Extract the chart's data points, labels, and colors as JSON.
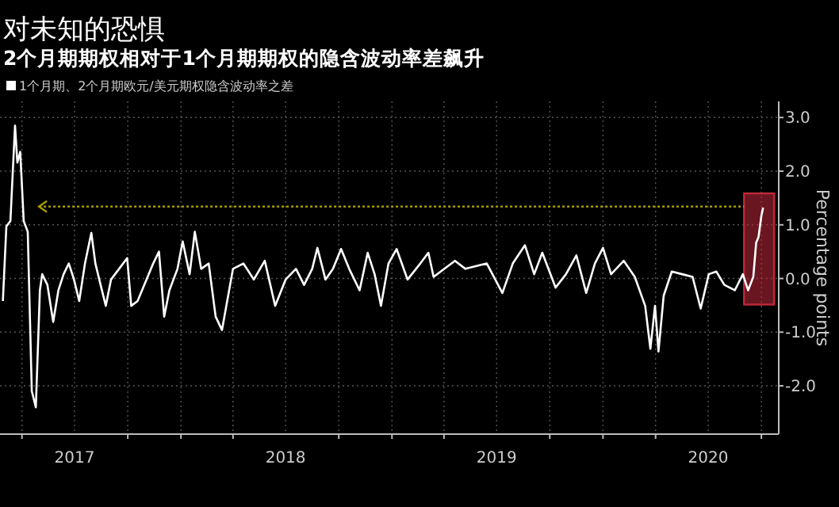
{
  "chart_data": {
    "type": "line",
    "title": "对未知的恐惧",
    "subtitle": "2个月期期权相对于1个月期期权的隐含波动率差飙升",
    "ylabel": "Percentage points",
    "legend": "top left",
    "grid": true,
    "line_style": "solid",
    "marker": "none",
    "xlim": [
      "2017-02-22",
      "2020-10-31"
    ],
    "ylim": [
      -2.9,
      3.3
    ],
    "yticks": [
      {
        "value": 3,
        "label": "3.0"
      },
      {
        "value": 2,
        "label": "2.0"
      },
      {
        "value": 1,
        "label": "1.0"
      },
      {
        "value": 0,
        "label": "0.0"
      },
      {
        "value": -1,
        "label": "-1.0"
      },
      {
        "value": -2,
        "label": "-2.0"
      }
    ],
    "xticks": [
      {
        "value": "2017-04-01",
        "label": null
      },
      {
        "value": "2017-07-01",
        "label": "2017"
      },
      {
        "value": "2017-10-01",
        "label": null
      },
      {
        "value": "2018-01-01",
        "label": null
      },
      {
        "value": "2018-04-01",
        "label": null
      },
      {
        "value": "2018-07-01",
        "label": "2018"
      },
      {
        "value": "2018-10-01",
        "label": null
      },
      {
        "value": "2019-01-01",
        "label": null
      },
      {
        "value": "2019-04-01",
        "label": null
      },
      {
        "value": "2019-07-01",
        "label": "2019"
      },
      {
        "value": "2019-10-01",
        "label": null
      },
      {
        "value": "2020-01-01",
        "label": null
      },
      {
        "value": "2020-04-01",
        "label": null
      },
      {
        "value": "2020-07-01",
        "label": "2020"
      },
      {
        "value": "2020-10-01",
        "label": null
      }
    ],
    "ref_lines": [
      {
        "axis": "y",
        "value": 1.34,
        "color": "#a89a00",
        "line_style": "dotted"
      }
    ],
    "bands": [
      {
        "axis": "x",
        "from": "2020-09-01",
        "to": "2020-10-23",
        "color": "#c0283a"
      }
    ],
    "series": [
      {
        "name": "1个月期、2个月期欧元/美元期权隐含波动率之差",
        "color": "#ffffff",
        "x": [
          "2017-02-27",
          "2017-03-05",
          "2017-03-12",
          "2017-03-20",
          "2017-03-24",
          "2017-03-29",
          "2017-04-04",
          "2017-04-11",
          "2017-04-18",
          "2017-04-25",
          "2017-05-02",
          "2017-05-06",
          "2017-05-15",
          "2017-05-25",
          "2017-06-03",
          "2017-06-12",
          "2017-06-21",
          "2017-06-30",
          "2017-07-09",
          "2017-07-19",
          "2017-07-30",
          "2017-08-06",
          "2017-08-15",
          "2017-08-24",
          "2017-09-02",
          "2017-09-16",
          "2017-09-30",
          "2017-10-07",
          "2017-10-18",
          "2017-11-14",
          "2017-11-24",
          "2017-12-03",
          "2017-12-12",
          "2017-12-26",
          "2018-01-04",
          "2018-01-16",
          "2018-01-25",
          "2018-02-05",
          "2018-02-18",
          "2018-03-02",
          "2018-03-13",
          "2018-04-01",
          "2018-04-19",
          "2018-05-07",
          "2018-05-26",
          "2018-06-13",
          "2018-07-01",
          "2018-07-19",
          "2018-08-02",
          "2018-08-16",
          "2018-08-25",
          "2018-09-08",
          "2018-09-21",
          "2018-10-05",
          "2018-10-19",
          "2018-11-06",
          "2018-11-20",
          "2018-12-02",
          "2018-12-13",
          "2018-12-26",
          "2019-01-09",
          "2019-01-28",
          "2019-02-19",
          "2019-03-05",
          "2019-03-14",
          "2019-04-20",
          "2019-05-08",
          "2019-06-14",
          "2019-07-11",
          "2019-07-29",
          "2019-08-19",
          "2019-09-04",
          "2019-09-18",
          "2019-10-11",
          "2019-10-29",
          "2019-11-16",
          "2019-12-03",
          "2019-12-18",
          "2020-01-01",
          "2020-01-15",
          "2020-02-06",
          "2020-02-25",
          "2020-03-14",
          "2020-03-23",
          "2020-03-31",
          "2020-04-06",
          "2020-04-15",
          "2020-04-29",
          "2020-05-17",
          "2020-06-04",
          "2020-06-18",
          "2020-07-02",
          "2020-07-15",
          "2020-07-29",
          "2020-08-16",
          "2020-08-30",
          "2020-09-08",
          "2020-09-17",
          "2020-09-22",
          "2020-09-26",
          "2020-10-01",
          "2020-10-04"
        ],
        "values": [
          -0.42,
          0.97,
          1.07,
          2.85,
          2.16,
          2.36,
          1.07,
          0.87,
          -2.1,
          -2.4,
          -0.22,
          0.08,
          -0.12,
          -0.81,
          -0.22,
          0.08,
          0.28,
          -0.02,
          -0.42,
          0.28,
          0.85,
          0.28,
          -0.12,
          -0.51,
          -0.02,
          0.18,
          0.38,
          -0.51,
          -0.42,
          0.28,
          0.5,
          -0.71,
          -0.22,
          0.18,
          0.69,
          0.08,
          0.87,
          0.18,
          0.28,
          -0.71,
          -0.96,
          0.18,
          0.28,
          -0.02,
          0.33,
          -0.51,
          -0.02,
          0.18,
          -0.12,
          0.18,
          0.57,
          -0.02,
          0.18,
          0.55,
          0.18,
          -0.22,
          0.48,
          0.08,
          -0.51,
          0.28,
          0.55,
          -0.02,
          0.28,
          0.48,
          0.03,
          0.33,
          0.18,
          0.28,
          -0.27,
          0.28,
          0.62,
          0.08,
          0.48,
          -0.17,
          0.08,
          0.43,
          -0.27,
          0.28,
          0.57,
          0.08,
          0.33,
          0.03,
          -0.51,
          -1.31,
          -0.51,
          -1.36,
          -0.32,
          0.13,
          0.08,
          0.03,
          -0.56,
          0.08,
          0.13,
          -0.12,
          -0.22,
          0.08,
          -0.22,
          0.03,
          0.67,
          0.77,
          1.17,
          1.32
        ]
      }
    ]
  }
}
